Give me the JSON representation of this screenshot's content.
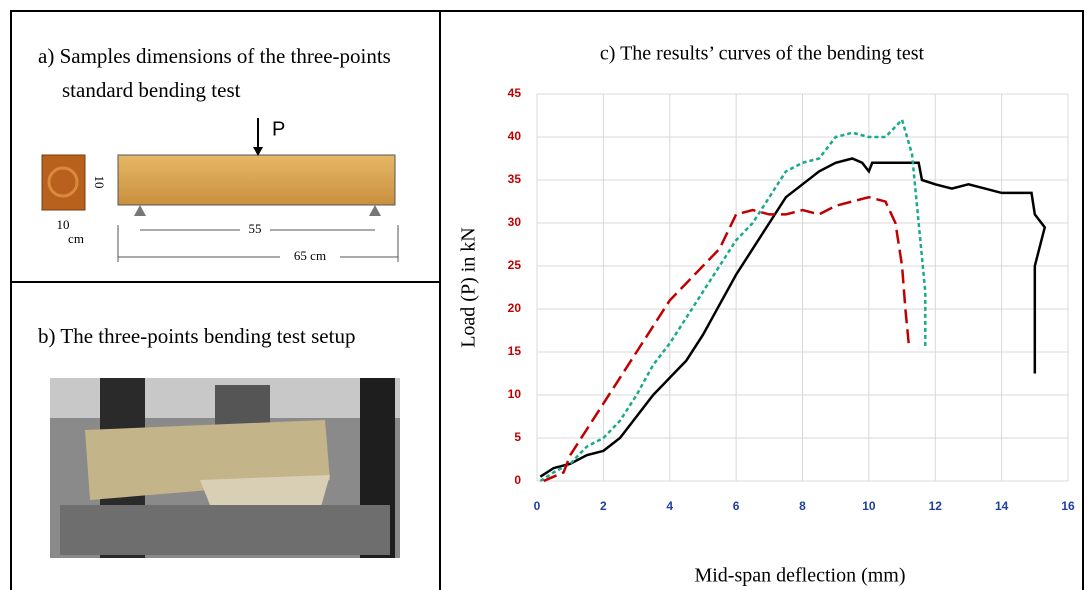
{
  "panel_a": {
    "title_line1": "a) Samples dimensions of the three-points",
    "title_line2": "standard bending test",
    "load_label": "P",
    "section_height": "10",
    "section_width": "10",
    "section_unit": "cm",
    "span": "55",
    "length": "65  cm"
  },
  "panel_b": {
    "title": "b) The three-points bending test setup"
  },
  "chart_data": {
    "type": "line",
    "title": "c) The results’ curves of the bending test",
    "x_label": "Mid-span deflection (mm)",
    "y_label": "Load (P)  in  kN",
    "xlim": [
      0,
      16
    ],
    "ylim": [
      0,
      45
    ],
    "xticks": [
      0,
      2,
      4,
      6,
      8,
      10,
      12,
      14,
      16
    ],
    "yticks": [
      0,
      5,
      10,
      15,
      20,
      25,
      30,
      35,
      40,
      45
    ],
    "grid": true,
    "xtick_color": "#1f3f9f",
    "ytick_color": "#c00000",
    "series": [
      {
        "color": "#000000",
        "dash": "none",
        "x": [
          0.1,
          0.5,
          1,
          1.5,
          2,
          2.5,
          3,
          3.5,
          4,
          4.5,
          5,
          5.5,
          6,
          6.5,
          7,
          7.5,
          8,
          8.5,
          9,
          9.5,
          9.8,
          10,
          10.1,
          10.5,
          11,
          11.5,
          11.6,
          12,
          12.5,
          13,
          13.5,
          14,
          14.5,
          14.9,
          15,
          15.3,
          15,
          15
        ],
        "values": [
          0.5,
          1.5,
          2,
          3,
          3.5,
          5,
          7.5,
          10,
          12,
          14,
          17,
          20.5,
          24,
          27,
          30,
          33,
          34.5,
          36,
          37,
          37.5,
          37,
          36,
          37,
          37,
          37,
          37,
          35,
          34.5,
          34,
          34.5,
          34,
          33.5,
          33.5,
          33.5,
          31,
          29.5,
          25,
          12.5
        ]
      },
      {
        "color": "#1aaa8a",
        "dash": "4 3",
        "x": [
          0.1,
          0.5,
          1,
          1.5,
          2,
          2.5,
          3,
          3.5,
          4,
          4.5,
          5,
          5.5,
          6,
          6.5,
          7,
          7.5,
          8,
          8.5,
          9,
          9.5,
          10,
          10.5,
          11,
          11.3,
          11.5,
          11.7,
          11.7
        ],
        "values": [
          0,
          1,
          2,
          4,
          5,
          7,
          10,
          13.5,
          16,
          19,
          22,
          25,
          28,
          30,
          33,
          36,
          37,
          37.5,
          40,
          40.5,
          40,
          40,
          42,
          38,
          30,
          22,
          15.5
        ]
      },
      {
        "color": "#c00000",
        "dash": "14 6",
        "x": [
          0.2,
          0.5,
          0.8,
          1,
          1.5,
          2,
          2.5,
          3,
          3.5,
          4,
          4.5,
          5,
          5.5,
          6,
          6.5,
          7,
          7.5,
          8,
          8.5,
          9,
          9.5,
          10,
          10.5,
          10.8,
          11,
          11.1,
          11.2
        ],
        "values": [
          0,
          0.5,
          1,
          3,
          6,
          9,
          12,
          15,
          18,
          21,
          23,
          25,
          27,
          31,
          31.5,
          31,
          31,
          31.5,
          31,
          32,
          32.5,
          33,
          32.5,
          30,
          25,
          20,
          16
        ]
      }
    ]
  }
}
